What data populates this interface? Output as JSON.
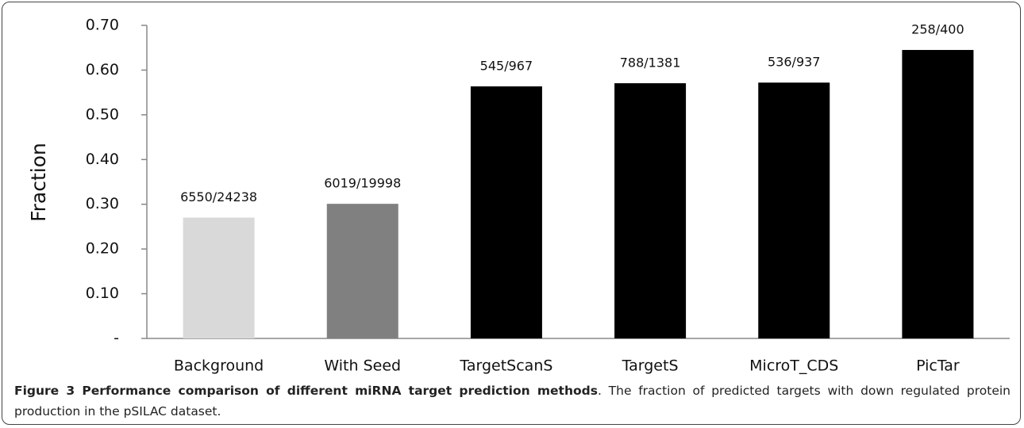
{
  "chart_data": {
    "type": "bar",
    "y_label": "Fraction",
    "categories": [
      "Background",
      "With Seed",
      "TargetScanS",
      "TargetS",
      "MicroT_CDS",
      "PicTar"
    ],
    "values": [
      0.2702,
      0.301,
      0.5636,
      0.5706,
      0.572,
      0.645
    ],
    "value_labels": [
      "6550/24238",
      "6019/19998",
      "545/967",
      "788/1381",
      "536/937",
      "258/400"
    ],
    "colors": [
      "#d9d9d9",
      "#808080",
      "#000000",
      "#000000",
      "#000000",
      "#000000"
    ],
    "ylim": [
      0,
      0.7
    ],
    "yticks": [
      {
        "value": 0,
        "label": "-"
      },
      {
        "value": 0.1,
        "label": "0.10"
      },
      {
        "value": 0.2,
        "label": "0.20"
      },
      {
        "value": 0.3,
        "label": "0.30"
      },
      {
        "value": 0.4,
        "label": "0.40"
      },
      {
        "value": 0.5,
        "label": "0.50"
      },
      {
        "value": 0.6,
        "label": "0.60"
      },
      {
        "value": 0.7,
        "label": "0.70"
      }
    ],
    "grid": false
  },
  "caption": {
    "title": "Figure 3 Performance comparison of different miRNA target prediction methods",
    "text": ". The fraction of predicted targets with down regulated protein production in the pSILAC dataset."
  }
}
